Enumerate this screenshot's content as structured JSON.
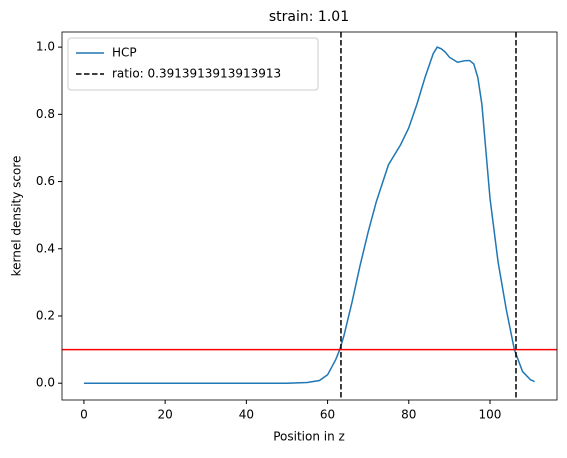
{
  "chart_data": {
    "type": "line",
    "title": "strain: 1.01",
    "xlabel": "Position in z",
    "ylabel": "kernel density score",
    "xlim": [
      -5.4,
      116.5
    ],
    "ylim": [
      -0.05,
      1.045
    ],
    "xticks": [
      0,
      20,
      40,
      60,
      80,
      100
    ],
    "yticks": [
      {
        "value": 0,
        "label": "0.0"
      },
      {
        "value": 0.2,
        "label": "0.2"
      },
      {
        "value": 0.4,
        "label": "0.4"
      },
      {
        "value": 0.6,
        "label": "0.6"
      },
      {
        "value": 0.8,
        "label": "0.8"
      },
      {
        "value": 1,
        "label": "1.0"
      }
    ],
    "grid": false,
    "legend": "upper left",
    "series": [
      {
        "name": "HCP",
        "color": "#1f77b4",
        "x": [
          0,
          5,
          10,
          15,
          20,
          25,
          30,
          35,
          40,
          45,
          50,
          55,
          58,
          60,
          62,
          63,
          64,
          66,
          68,
          70,
          72,
          75,
          78,
          80,
          82,
          84,
          86,
          87,
          88,
          89,
          90,
          92,
          94,
          95,
          96,
          97,
          98,
          100,
          102,
          104,
          106,
          108,
          110,
          111
        ],
        "values": [
          0,
          0,
          0,
          0,
          0,
          0,
          0,
          0,
          0,
          0,
          0,
          0.002,
          0.008,
          0.025,
          0.07,
          0.1,
          0.14,
          0.24,
          0.35,
          0.45,
          0.54,
          0.65,
          0.71,
          0.76,
          0.83,
          0.91,
          0.98,
          1.0,
          0.995,
          0.985,
          0.97,
          0.955,
          0.96,
          0.96,
          0.95,
          0.91,
          0.83,
          0.55,
          0.36,
          0.22,
          0.1,
          0.035,
          0.01,
          0.005
        ]
      }
    ],
    "vlines": {
      "name": "ratio: 0.3913913913913913",
      "color": "#000000",
      "values": [
        63.3,
        106.4
      ]
    },
    "hline": {
      "value": 0.1,
      "color": "#ff0000"
    }
  }
}
